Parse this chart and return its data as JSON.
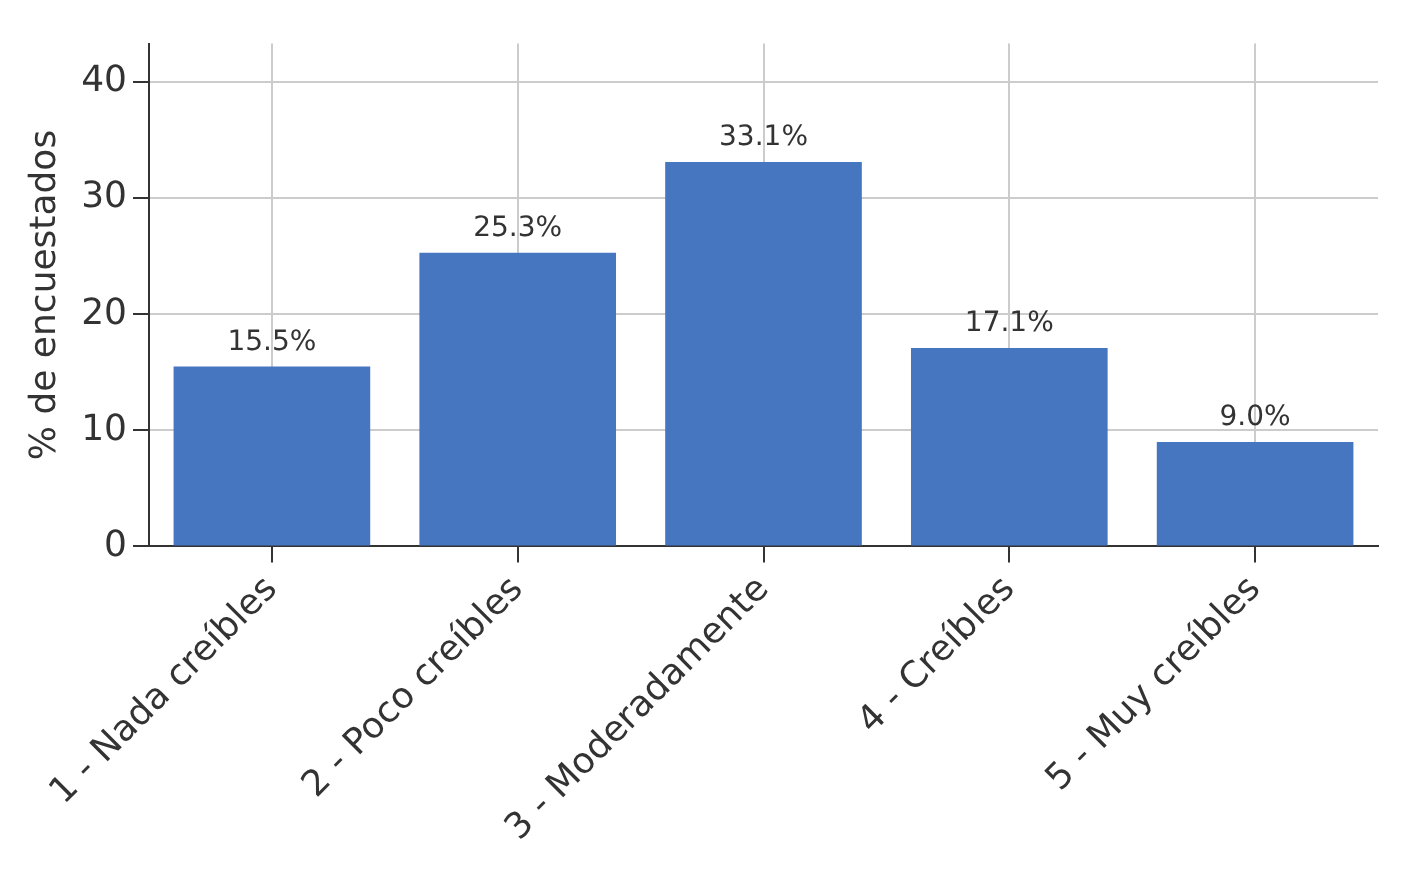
{
  "chart_data": {
    "type": "bar",
    "ylabel": "% de encuestados",
    "categories": [
      "1 - Nada creíbles",
      "2 - Poco creíbles",
      "3 - Moderadamente",
      "4 - Creíbles",
      "5 - Muy creíbles"
    ],
    "values": [
      15.5,
      25.3,
      33.1,
      17.1,
      9.0
    ],
    "value_labels": [
      "15.5%",
      "25.3%",
      "33.1%",
      "17.1%",
      "9.0%"
    ],
    "color": "#4676bf",
    "ylim": [
      0,
      43.3
    ],
    "yticks": [
      0,
      10,
      20,
      30,
      40
    ],
    "grid": true,
    "legend": false
  }
}
